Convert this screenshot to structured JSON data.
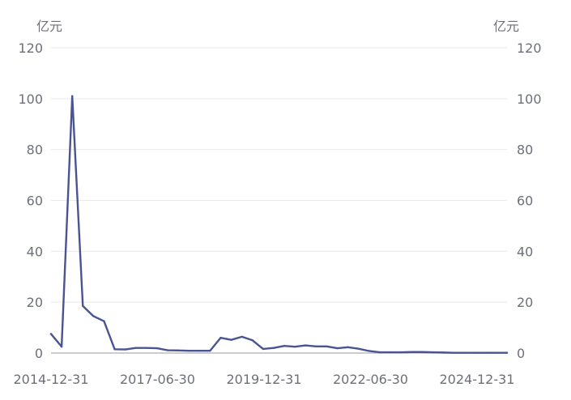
{
  "chart_data": {
    "type": "line",
    "title": "",
    "y_unit_left": "亿元",
    "y_unit_right": "亿元",
    "ylim": [
      0,
      120
    ],
    "y_ticks": [
      0,
      20,
      40,
      60,
      80,
      100,
      120
    ],
    "y_tick_labels": [
      "0",
      "20",
      "40",
      "60",
      "80",
      "100",
      "120"
    ],
    "x_tick_labels": [
      "2014-12-31",
      "2017-06-30",
      "2019-12-31",
      "2022-06-30",
      "2024-12-31"
    ],
    "grid": true,
    "line_color": "#4a5490",
    "series": [
      {
        "values": [
          7.5,
          2.5,
          101,
          18.5,
          14.5,
          12.5,
          1.5,
          1.4,
          2.0,
          2.0,
          1.9,
          1.1,
          1.0,
          0.9,
          0.9,
          0.9,
          6.0,
          5.2,
          6.4,
          5.0,
          1.6,
          2.0,
          2.8,
          2.5,
          3.0,
          2.6,
          2.6,
          1.9,
          2.3,
          1.7,
          0.8,
          0.3,
          0.3,
          0.3,
          0.4,
          0.4,
          0.3,
          0.2,
          0.1,
          0.1,
          0.1,
          0.1,
          0.1,
          0.1
        ]
      }
    ]
  }
}
